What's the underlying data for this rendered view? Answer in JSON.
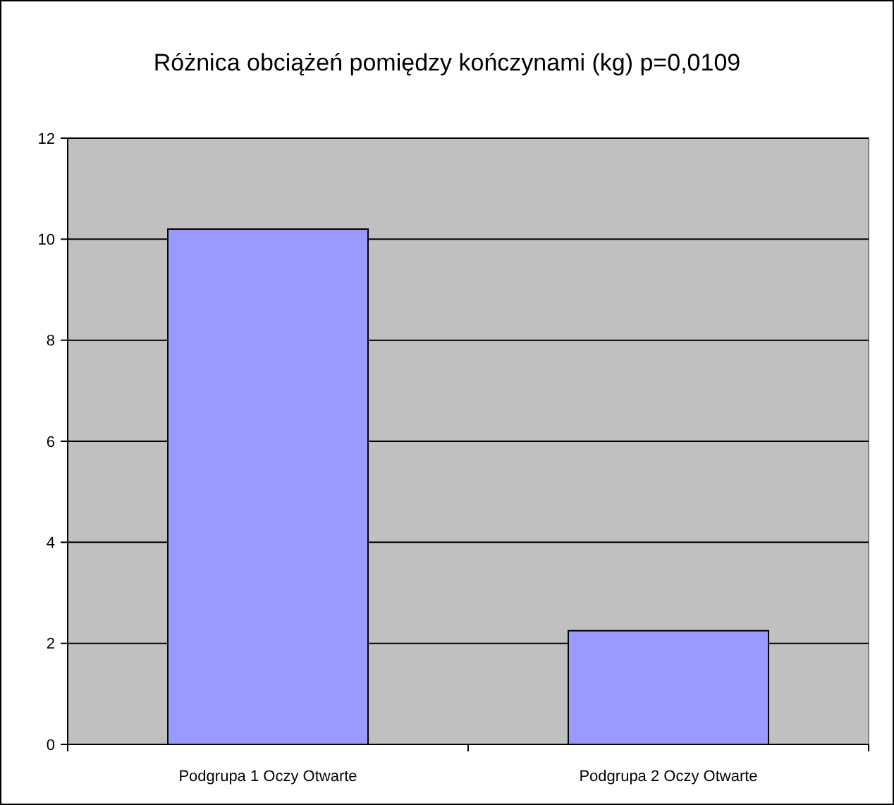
{
  "chart_data": {
    "type": "bar",
    "title": "Różnica obciążeń pomiędzy kończynami (kg) p=0,0109",
    "categories": [
      "Podgrupa 1 Oczy Otwarte",
      "Podgrupa 2 Oczy Otwarte"
    ],
    "values": [
      10.2,
      2.25
    ],
    "color": "#9999ff",
    "ylim": [
      0,
      12
    ],
    "yticks": [
      0,
      2,
      4,
      6,
      8,
      10,
      12
    ],
    "grid": "y"
  }
}
